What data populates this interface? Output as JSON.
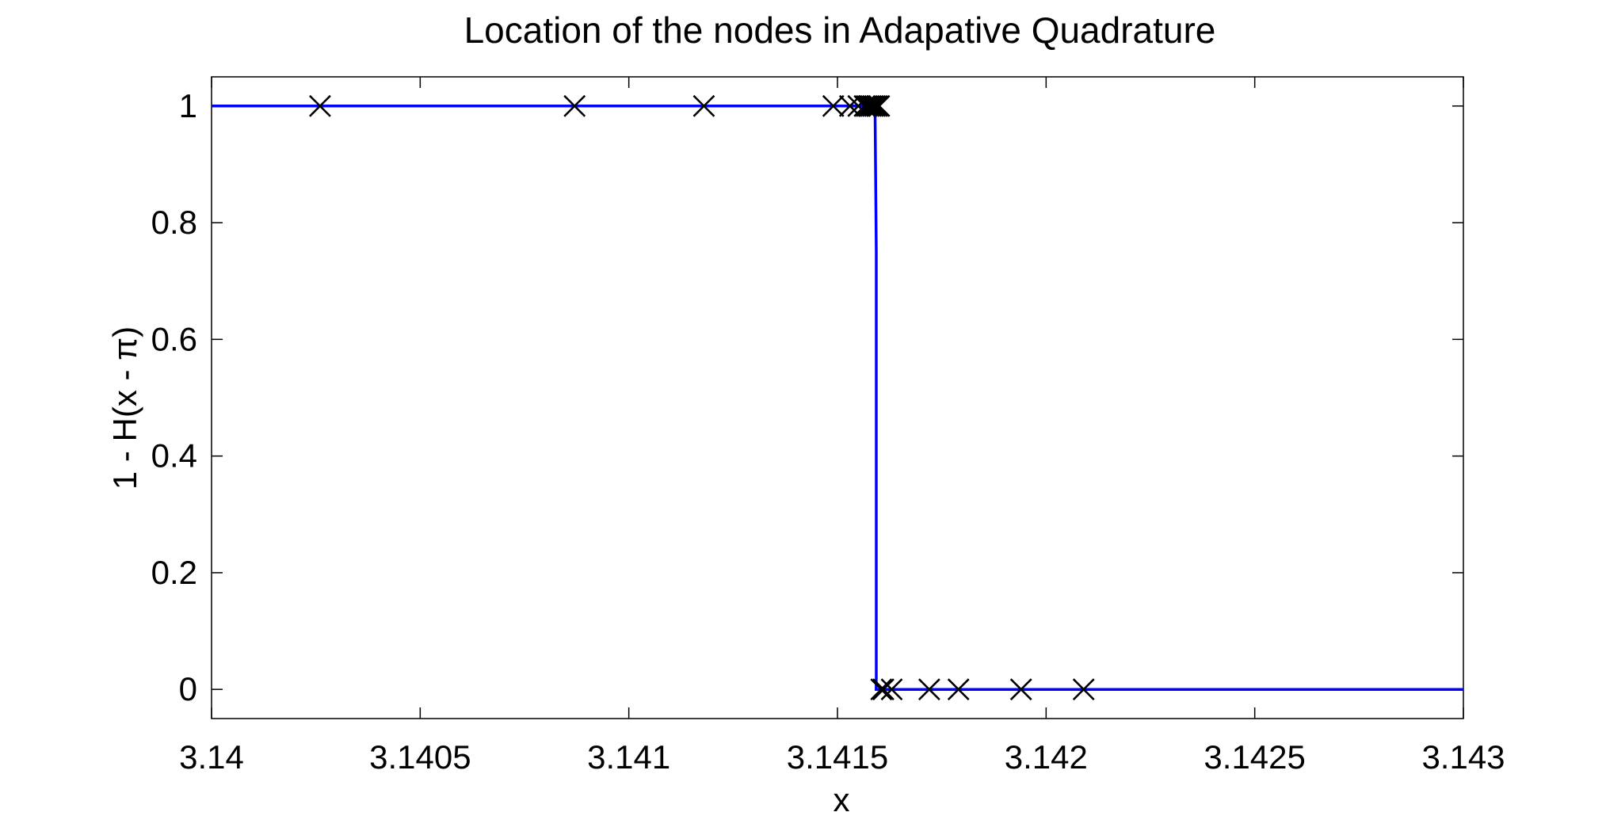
{
  "chart_data": {
    "type": "line",
    "title": "Location of the nodes in Adapative Quadrature",
    "xlabel": "x",
    "ylabel": "1 - H(x - π)",
    "xlim": [
      3.14,
      3.143
    ],
    "ylim": [
      -0.05,
      1.05
    ],
    "x_ticks": [
      3.14,
      3.1405,
      3.141,
      3.1415,
      3.142,
      3.1425,
      3.143
    ],
    "x_tick_labels": [
      "3.14",
      "3.1405",
      "3.141",
      "3.1415",
      "3.142",
      "3.1425",
      "3.143"
    ],
    "y_ticks": [
      0,
      0.2,
      0.4,
      0.6,
      0.8,
      1
    ],
    "y_tick_labels": [
      "0",
      "0.2",
      "0.4",
      "0.6",
      "0.8",
      "1"
    ],
    "grid": false,
    "legend": "none",
    "series": [
      {
        "style": "line",
        "color": "#0000ff",
        "x": [
          3.14,
          3.14159,
          3.141593,
          3.141593,
          3.14159265,
          3.143
        ],
        "values": [
          1,
          1,
          0.75,
          0.02,
          0,
          0
        ]
      },
      {
        "style": "markers",
        "marker": "x",
        "color": "#000000",
        "x": [
          3.14026,
          3.14087,
          3.14118,
          3.14149,
          3.14153,
          3.14155,
          3.141565,
          3.14157,
          3.141575,
          3.14158,
          3.141585,
          3.14159,
          3.141595,
          3.1416,
          3.141605,
          3.14161,
          3.14163,
          3.14172,
          3.14179,
          3.14194,
          3.14209
        ],
        "values": [
          1,
          1,
          1,
          1,
          1,
          1,
          1,
          1,
          1,
          1,
          1,
          1,
          1,
          1,
          0,
          0,
          0,
          0,
          0,
          0,
          0
        ]
      }
    ]
  }
}
